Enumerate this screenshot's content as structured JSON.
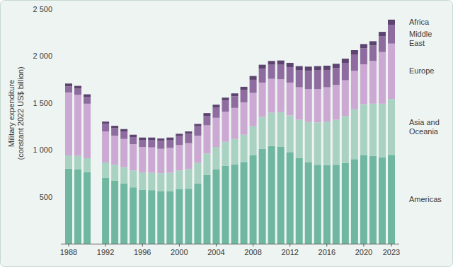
{
  "chart_data": {
    "type": "bar",
    "stacked": true,
    "grid": false,
    "ylabel": [
      "Military expenditure",
      "(constant 2022 US$ billion)"
    ],
    "categories": [
      "1988",
      null,
      null,
      null,
      "1992",
      null,
      null,
      null,
      "1996",
      null,
      null,
      null,
      "2000",
      null,
      null,
      null,
      "2004",
      null,
      null,
      null,
      "2008",
      null,
      null,
      null,
      "2012",
      null,
      null,
      null,
      "2016",
      null,
      null,
      null,
      "2020",
      null,
      null,
      "2023"
    ],
    "ylim": [
      0,
      2500
    ],
    "yticks": [
      500,
      {
        "value": 1000,
        "label": "1 000"
      },
      {
        "value": 1500,
        "label": "1 500"
      },
      {
        "value": 2000,
        "label": "2 000"
      },
      {
        "value": 2500,
        "label": "2 500"
      }
    ],
    "series": [
      {
        "name": "Americas",
        "color": "#6fb7a0",
        "values": [
          800,
          790,
          760,
          null,
          700,
          670,
          640,
          600,
          575,
          570,
          560,
          560,
          580,
          585,
          640,
          730,
          790,
          830,
          845,
          870,
          940,
          1010,
          1040,
          1030,
          975,
          910,
          865,
          840,
          835,
          840,
          860,
          900,
          940,
          935,
          920,
          945
        ]
      },
      {
        "name": "Asia and Oceania",
        "color": "#a9d2c2",
        "values": [
          140,
          145,
          150,
          null,
          165,
          170,
          175,
          180,
          185,
          185,
          190,
          195,
          200,
          210,
          220,
          230,
          240,
          255,
          270,
          290,
          310,
          340,
          355,
          370,
          390,
          410,
          430,
          450,
          465,
          480,
          500,
          530,
          545,
          555,
          570,
          595
        ]
      },
      {
        "name": "Europe",
        "color": "#cba9d3",
        "values": [
          670,
          650,
          580,
          null,
          330,
          310,
          300,
          280,
          270,
          270,
          260,
          265,
          270,
          275,
          290,
          300,
          310,
          320,
          330,
          345,
          355,
          365,
          360,
          350,
          350,
          345,
          350,
          355,
          365,
          370,
          380,
          410,
          425,
          455,
          550,
          590
        ]
      },
      {
        "name": "Middle East",
        "color": "#8e6c9f",
        "values": [
          65,
          65,
          70,
          null,
          80,
          80,
          80,
          75,
          75,
          80,
          85,
          85,
          95,
          100,
          100,
          100,
          110,
          120,
          125,
          130,
          140,
          150,
          150,
          155,
          165,
          180,
          195,
          200,
          185,
          180,
          185,
          175,
          170,
          165,
          170,
          200
        ]
      },
      {
        "name": "Africa",
        "color": "#5d4470",
        "values": [
          30,
          30,
          30,
          null,
          25,
          25,
          25,
          25,
          25,
          25,
          25,
          25,
          25,
          25,
          25,
          30,
          30,
          30,
          30,
          35,
          40,
          40,
          40,
          45,
          45,
          45,
          45,
          45,
          45,
          45,
          45,
          45,
          45,
          45,
          45,
          55
        ]
      }
    ]
  }
}
